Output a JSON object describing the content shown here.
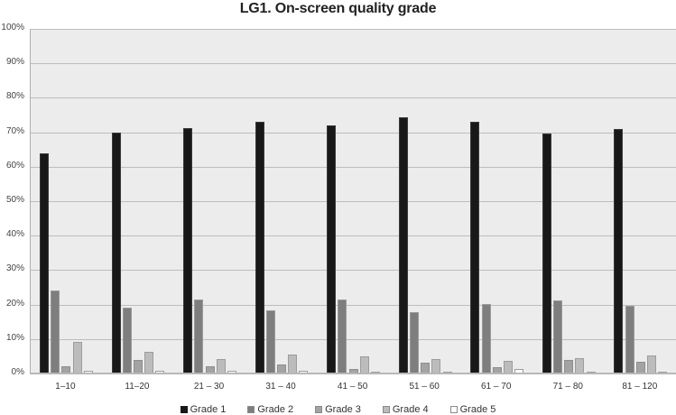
{
  "chart_data": {
    "type": "bar",
    "title": "LG1. On-screen quality grade",
    "xlabel": "",
    "ylabel": "",
    "ylim": [
      0,
      100
    ],
    "yticks": [
      "0%",
      "10%",
      "20%",
      "30%",
      "40%",
      "50%",
      "60%",
      "70%",
      "80%",
      "90%",
      "100%"
    ],
    "grid": true,
    "legend_position": "bottom",
    "categories": [
      "1–10",
      "11–20",
      "21 – 30",
      "31 – 40",
      "41 – 50",
      "51 – 60",
      "61 – 70",
      "71 – 80",
      "81 – 120"
    ],
    "series": [
      {
        "name": "Grade 1",
        "color": "#181818",
        "values": [
          64.0,
          70.0,
          71.3,
          73.0,
          72.1,
          74.3,
          73.1,
          69.6,
          70.9
        ]
      },
      {
        "name": "Grade 2",
        "color": "#7e7e7e",
        "values": [
          24.0,
          19.2,
          21.4,
          18.3,
          21.6,
          17.8,
          20.1,
          21.1,
          19.7
        ]
      },
      {
        "name": "Grade 3",
        "color": "#a3a3a3",
        "values": [
          2.1,
          3.8,
          2.1,
          2.5,
          1.2,
          3.1,
          1.8,
          4.0,
          3.5
        ]
      },
      {
        "name": "Grade 4",
        "color": "#bcbcbc",
        "values": [
          9.1,
          6.3,
          4.1,
          5.4,
          4.9,
          4.1,
          3.6,
          4.5,
          5.3
        ]
      },
      {
        "name": "Grade 5",
        "color": "#ffffff",
        "values": [
          0.7,
          0.7,
          0.7,
          0.7,
          0.0,
          0.4,
          1.3,
          0.4,
          0.4
        ]
      }
    ]
  }
}
